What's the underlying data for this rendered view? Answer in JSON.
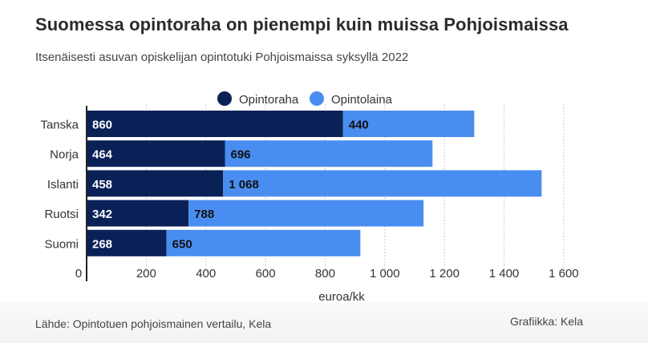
{
  "title": "Suomessa opintoraha on pienempi kuin muissa Pohjoismaissa",
  "subtitle": "Itsenäisesti asuvan opiskelijan opintotuki Pohjoismaissa syksyllä 2022",
  "source": "Lähde: Opintotuen pohjoismainen vertailu, Kela",
  "credit": "Grafiikka: Kela",
  "chart_data": {
    "type": "bar",
    "orientation": "horizontal",
    "stacked": true,
    "categories": [
      "Tanska",
      "Norja",
      "Islanti",
      "Ruotsi",
      "Suomi"
    ],
    "series": [
      {
        "name": "Opintoraha",
        "color": "#0a2158",
        "values": [
          860,
          464,
          458,
          342,
          268
        ],
        "labels": [
          "860",
          "464",
          "458",
          "342",
          "268"
        ]
      },
      {
        "name": "Opintolaina",
        "color": "#4a8df0",
        "values": [
          440,
          696,
          1068,
          788,
          650
        ],
        "labels": [
          "440",
          "696",
          "1 068",
          "788",
          "650"
        ]
      }
    ],
    "xlim": [
      0,
      1700
    ],
    "xticks": [
      0,
      200,
      400,
      600,
      800,
      1000,
      1200,
      1400,
      1600
    ],
    "xtick_labels": [
      "0",
      "200",
      "400",
      "600",
      "800",
      "1 000",
      "1 200",
      "1 400",
      "1 600"
    ],
    "xlabel": "euroa/kk",
    "ylabel": "",
    "legend_position": "top",
    "grid": "vertical dashed"
  }
}
